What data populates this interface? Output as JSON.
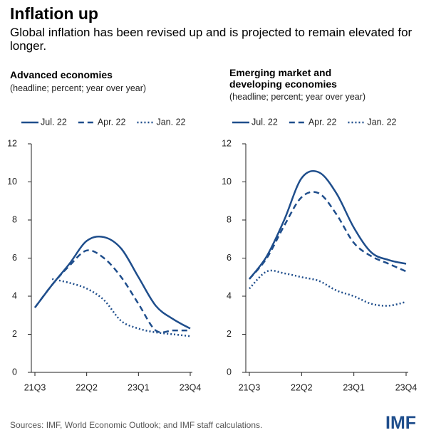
{
  "header": {
    "title": "Inflation up",
    "subtitle": "Global inflation has been revised up and is projected to remain elevated for longer."
  },
  "chart_data": [
    {
      "type": "line",
      "title": "Advanced economies",
      "subtitle": "(headline; percent; year over year)",
      "categories": [
        "21Q3",
        null,
        null,
        "22Q2",
        null,
        null,
        "23Q1",
        null,
        null,
        "23Q4"
      ],
      "series": [
        {
          "name": "Jul. 22",
          "color": "#1f4e8c",
          "dash": "solid",
          "values": [
            3.4,
            4.6,
            5.7,
            6.9,
            7.1,
            6.5,
            5.0,
            3.5,
            2.8,
            2.3
          ]
        },
        {
          "name": "Apr. 22",
          "color": "#1f4e8c",
          "dash": "dashed",
          "values": [
            3.4,
            4.6,
            5.6,
            6.4,
            6.0,
            5.0,
            3.6,
            2.2,
            2.2,
            2.2
          ]
        },
        {
          "name": "Jan. 22",
          "color": "#1f4e8c",
          "dash": "dotted",
          "values": [
            null,
            4.9,
            4.7,
            4.4,
            3.8,
            2.7,
            2.3,
            2.1,
            2.0,
            1.9
          ]
        }
      ],
      "ylim": [
        0,
        12
      ],
      "yticks": [
        0,
        2,
        4,
        6,
        8,
        10,
        12
      ],
      "grid": false,
      "legend": "top"
    },
    {
      "type": "line",
      "title": "Emerging market and developing economies",
      "subtitle": "(headline; percent; year over year)",
      "categories": [
        "21Q3",
        null,
        null,
        "22Q2",
        null,
        null,
        "23Q1",
        null,
        null,
        "23Q4"
      ],
      "series": [
        {
          "name": "Jul. 22",
          "color": "#1f4e8c",
          "dash": "solid",
          "values": [
            4.9,
            6.1,
            8.0,
            10.2,
            10.5,
            9.4,
            7.6,
            6.3,
            5.9,
            5.7
          ]
        },
        {
          "name": "Apr. 22",
          "color": "#1f4e8c",
          "dash": "dashed",
          "values": [
            4.9,
            6.0,
            7.7,
            9.2,
            9.4,
            8.3,
            6.8,
            6.1,
            5.7,
            5.3
          ]
        },
        {
          "name": "Jan. 22",
          "color": "#1f4e8c",
          "dash": "dotted",
          "values": [
            4.4,
            5.3,
            5.2,
            5.0,
            4.8,
            4.3,
            4.0,
            3.6,
            3.5,
            3.7
          ]
        }
      ],
      "ylim": [
        0,
        12
      ],
      "yticks": [
        0,
        2,
        4,
        6,
        8,
        10,
        12
      ],
      "grid": false,
      "legend": "top"
    }
  ],
  "footer": {
    "source": "Sources: IMF, World Economic Outlook; and IMF staff calculations.",
    "logo": "IMF"
  }
}
